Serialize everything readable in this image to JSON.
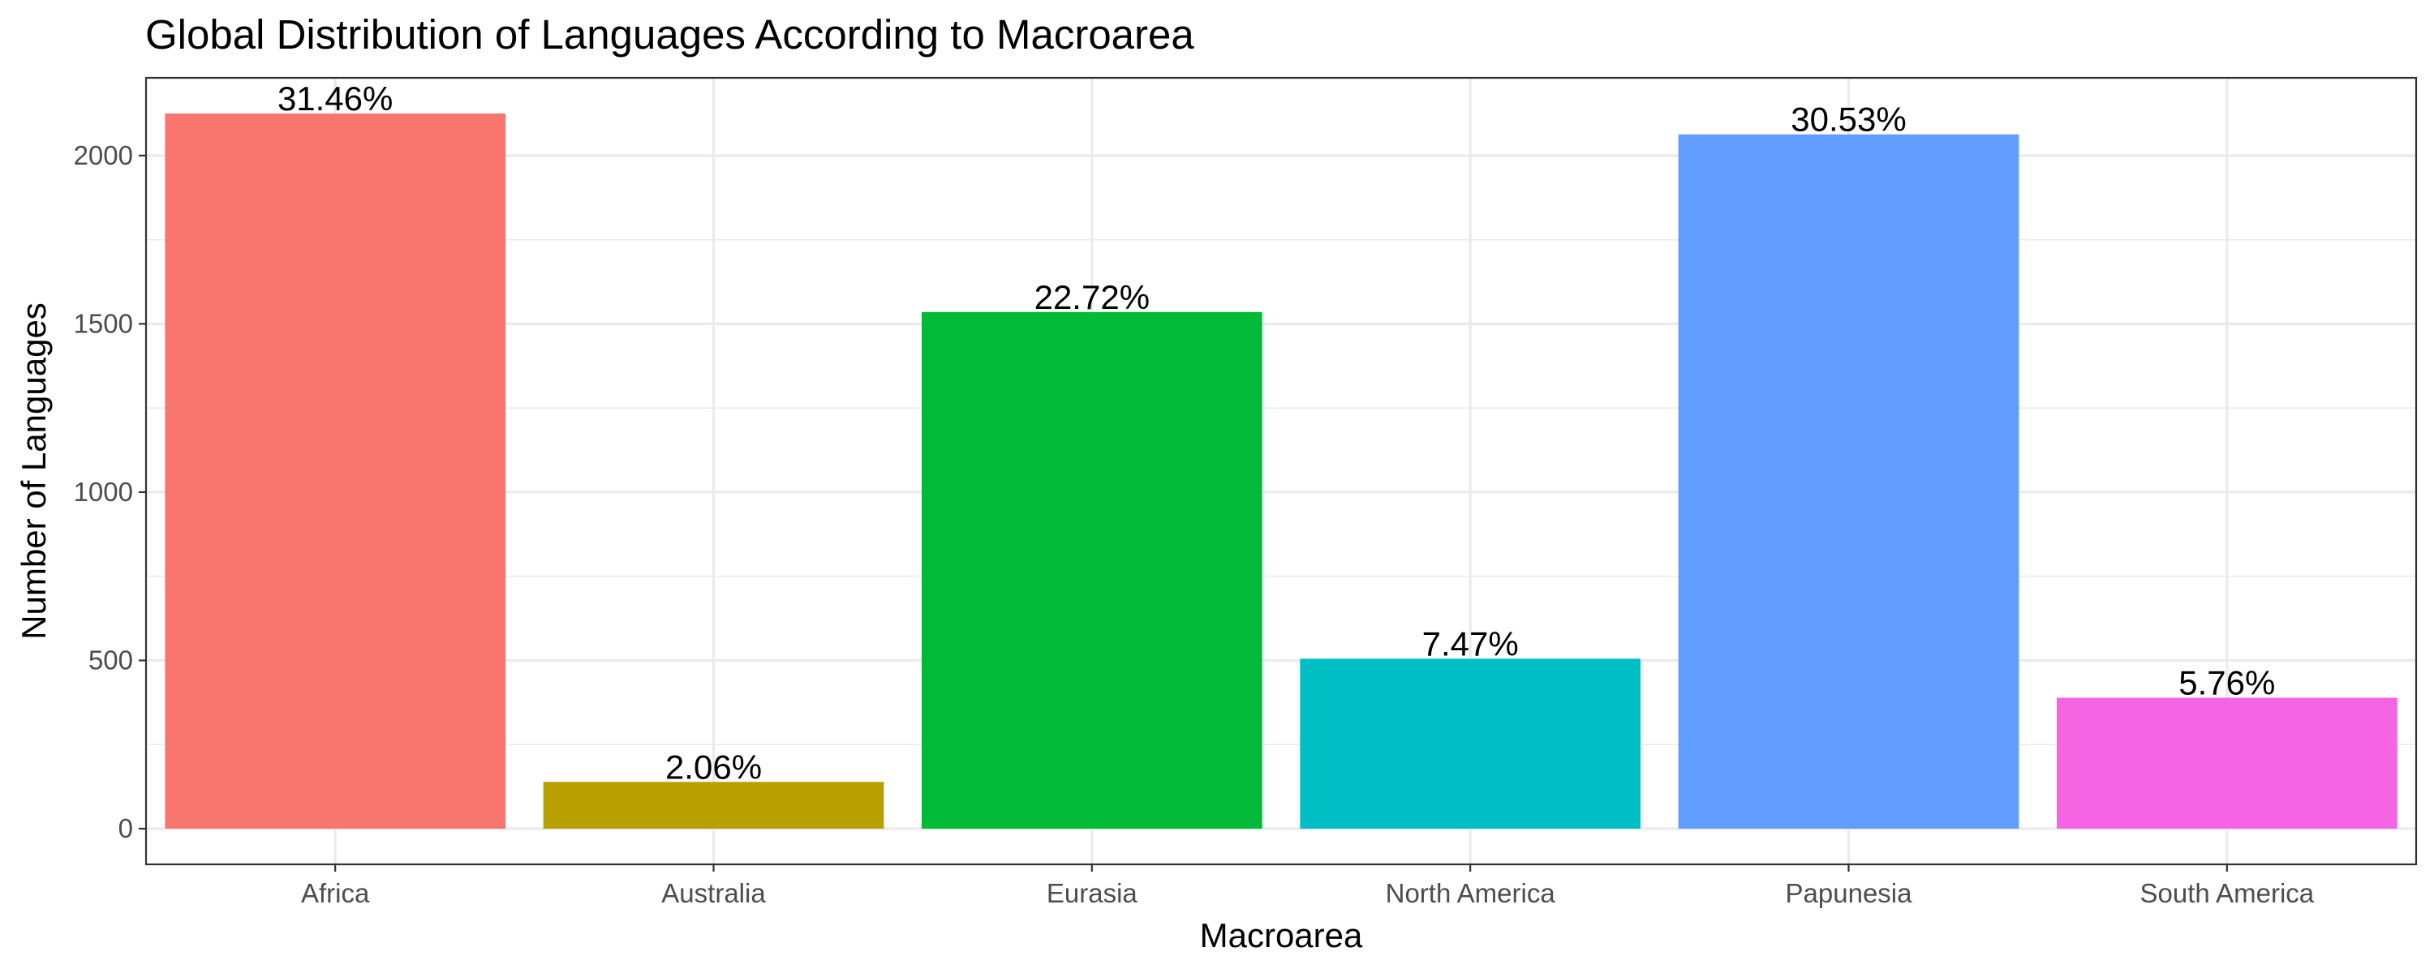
{
  "chart_data": {
    "type": "bar",
    "title": "Global Distribution of Languages According to Macroarea",
    "xlabel": "Macroarea",
    "ylabel": "Number of Languages",
    "categories": [
      "Africa",
      "Australia",
      "Eurasia",
      "North America",
      "Papunesia",
      "South America"
    ],
    "values": [
      2125,
      139,
      1535,
      505,
      2063,
      389
    ],
    "labels": [
      "31.46%",
      "2.06%",
      "22.72%",
      "7.47%",
      "30.53%",
      "5.76%"
    ],
    "colors": [
      "#F8766D",
      "#B79F00",
      "#00BA38",
      "#00BFC4",
      "#619CFF",
      "#F564E3"
    ],
    "yticks": [
      0,
      500,
      1000,
      1500,
      2000
    ],
    "ylim": [
      -106,
      2231
    ],
    "grid": true,
    "legend": "none"
  }
}
